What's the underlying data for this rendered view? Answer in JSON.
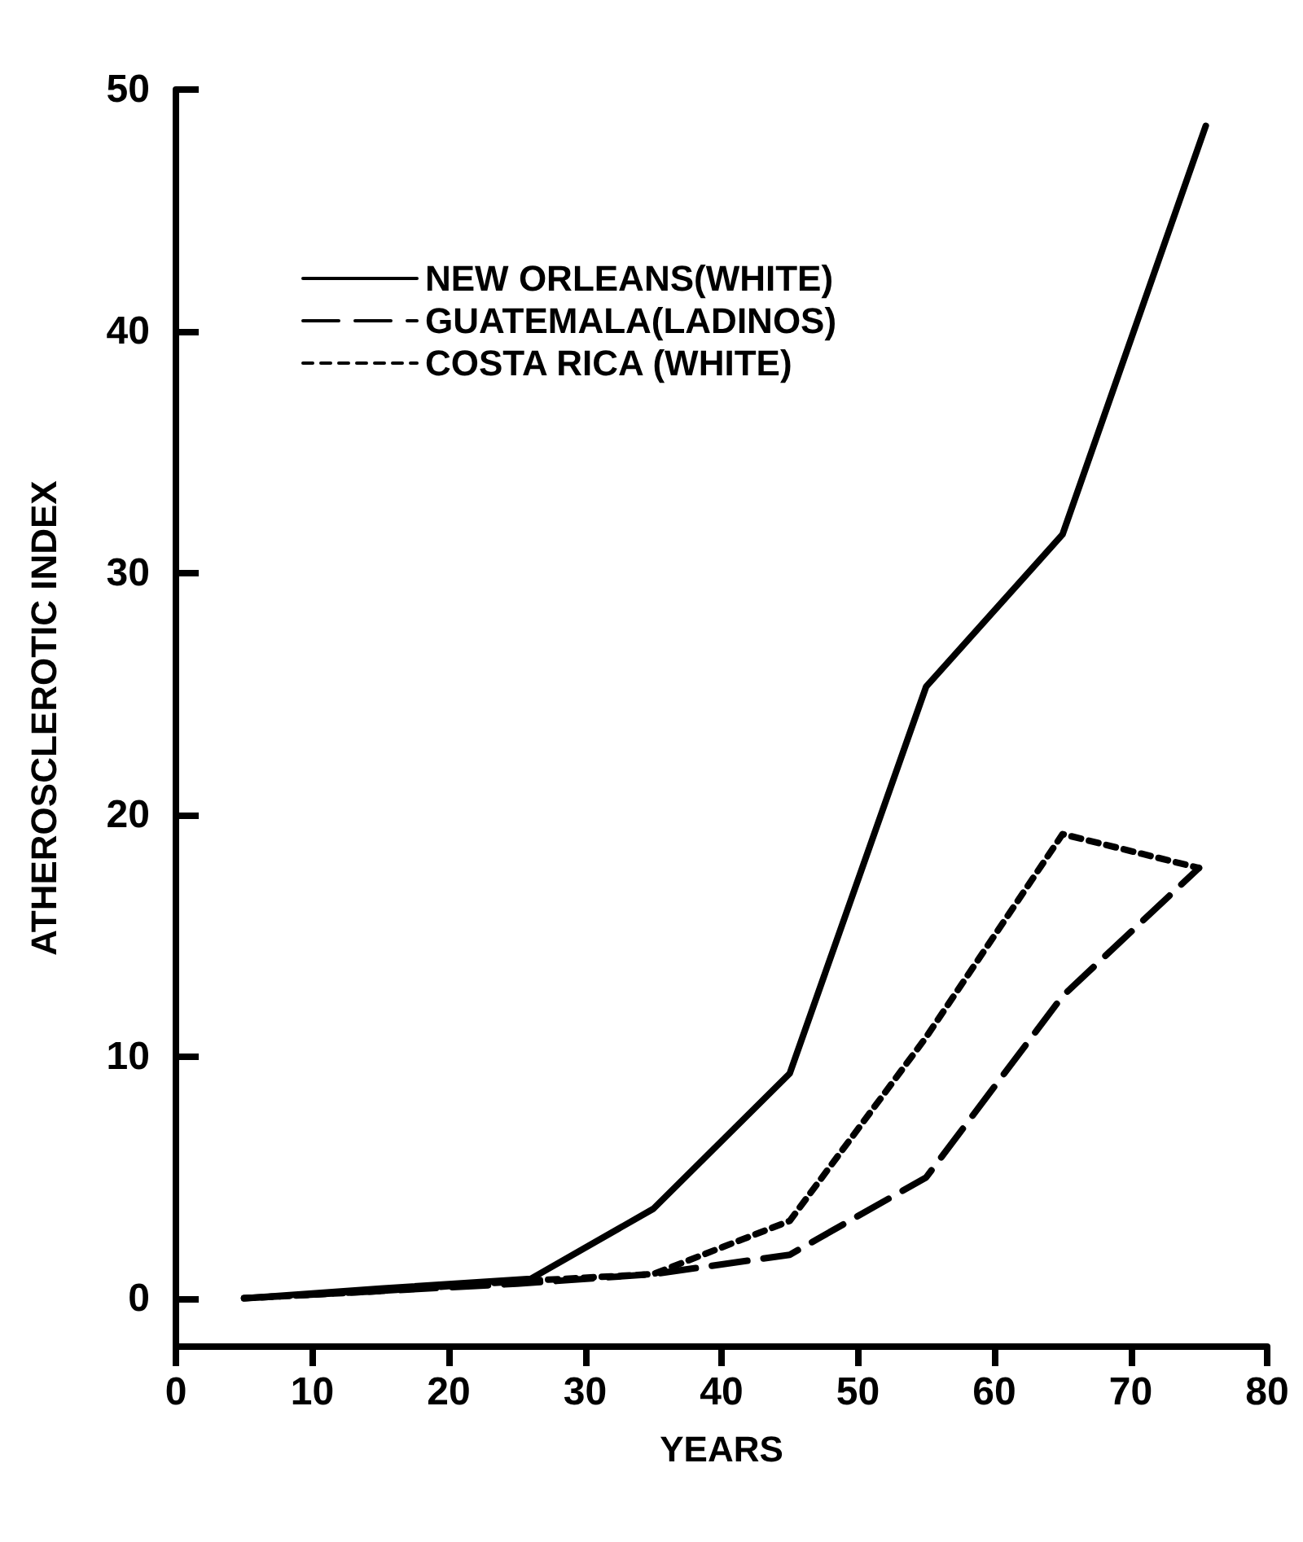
{
  "chart_data": {
    "type": "line",
    "xlabel": "YEARS",
    "ylabel": "ATHEROSCLEROTIC INDEX",
    "xlim": [
      0,
      80
    ],
    "xticks": [
      0,
      10,
      20,
      30,
      40,
      50,
      60,
      70,
      80
    ],
    "ylim": [
      -2,
      50
    ],
    "yticks": [
      0,
      10,
      20,
      30,
      40,
      50
    ],
    "grid": false,
    "legend": "top left",
    "marker": "none",
    "series": [
      {
        "name": "NEW ORLEANS(WHITE)",
        "color": "#000000",
        "line_style": "solid",
        "x": [
          5,
          15,
          26,
          35,
          45,
          55,
          65,
          75.5
        ],
        "values": [
          0,
          0.4,
          0.8,
          3.7,
          9.3,
          25.3,
          31.6,
          48.5
        ]
      },
      {
        "name": "GUATEMALA(LADINOS)",
        "color": "#000000",
        "line_style": "dashed",
        "x": [
          5,
          15,
          25,
          35,
          45,
          55,
          65,
          75
        ],
        "values": [
          0,
          0.3,
          0.6,
          1,
          1.8,
          5,
          12.5,
          17.8
        ]
      },
      {
        "name": "COSTA RICA (WHITE)",
        "color": "#000000",
        "line_style": "dotted",
        "x": [
          5,
          15,
          25,
          35,
          45,
          55,
          65,
          75
        ],
        "values": [
          0,
          0.3,
          0.7,
          1,
          3.2,
          10.8,
          19.2,
          17.8
        ]
      }
    ]
  }
}
